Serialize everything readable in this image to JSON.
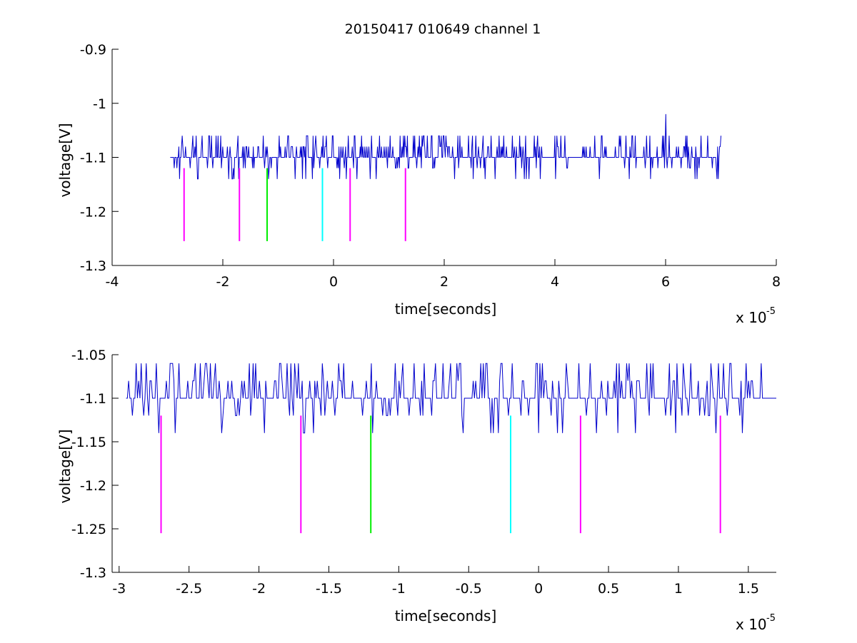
{
  "figure": {
    "title": "20150417 010649 channel 1"
  },
  "chart_data": [
    {
      "type": "line",
      "xlabel": "time[seconds]",
      "ylabel": "voltage[V]",
      "x_multiplier_label": "x 10",
      "x_multiplier_exponent": "-5",
      "xlim": [
        -4,
        8
      ],
      "ylim": [
        -1.3,
        -0.9
      ],
      "xticks": [
        -4,
        -2,
        0,
        2,
        4,
        6,
        8
      ],
      "xtick_labels": [
        "-4",
        "-2",
        "0",
        "2",
        "4",
        "6",
        "8"
      ],
      "yticks": [
        -1.3,
        -1.2,
        -1.1,
        -1,
        -0.9
      ],
      "ytick_labels": [
        "-1.3",
        "-1.2",
        "-1.1",
        "-1",
        "-0.9"
      ],
      "grid": false,
      "series": [
        {
          "color": "#0000cc",
          "x_range": [
            -2.95,
            7.0
          ],
          "baseline": -1.1,
          "levels": [
            -1.14,
            -1.12,
            -1.1,
            -1.08,
            -1.06
          ],
          "spike": {
            "x": 6.0,
            "y": -1.02
          }
        }
      ],
      "markers": [
        {
          "x": -2.7,
          "y_top": -1.12,
          "y_bottom": -1.255,
          "color": "#ff00ff"
        },
        {
          "x": -1.7,
          "y_top": -1.12,
          "y_bottom": -1.255,
          "color": "#ff00ff"
        },
        {
          "x": -1.2,
          "y_top": -1.12,
          "y_bottom": -1.255,
          "color": "#00ee00"
        },
        {
          "x": -0.2,
          "y_top": -1.12,
          "y_bottom": -1.255,
          "color": "#00ffff"
        },
        {
          "x": 0.3,
          "y_top": -1.12,
          "y_bottom": -1.255,
          "color": "#ff00ff"
        },
        {
          "x": 1.3,
          "y_top": -1.12,
          "y_bottom": -1.255,
          "color": "#ff00ff"
        }
      ]
    },
    {
      "type": "line",
      "xlabel": "time[seconds]",
      "ylabel": "voltage[V]",
      "x_multiplier_label": "x 10",
      "x_multiplier_exponent": "-5",
      "xlim": [
        -3.05,
        1.7
      ],
      "ylim": [
        -1.3,
        -1.05
      ],
      "xticks": [
        -3,
        -2.5,
        -2,
        -1.5,
        -1,
        -0.5,
        0,
        0.5,
        1,
        1.5
      ],
      "xtick_labels": [
        "-3",
        "-2.5",
        "-2",
        "-1.5",
        "-1",
        "-0.5",
        "0",
        "0.5",
        "1",
        "1.5"
      ],
      "yticks": [
        -1.3,
        -1.25,
        -1.2,
        -1.15,
        -1.1,
        -1.05
      ],
      "ytick_labels": [
        "-1.3",
        "-1.25",
        "-1.2",
        "-1.15",
        "-1.1",
        "-1.05"
      ],
      "grid": false,
      "series": [
        {
          "color": "#0000cc",
          "x_range": [
            -2.95,
            1.7
          ],
          "baseline": -1.1,
          "levels": [
            -1.14,
            -1.12,
            -1.1,
            -1.08,
            -1.06
          ]
        }
      ],
      "markers": [
        {
          "x": -2.7,
          "y_top": -1.12,
          "y_bottom": -1.255,
          "color": "#ff00ff"
        },
        {
          "x": -1.7,
          "y_top": -1.12,
          "y_bottom": -1.255,
          "color": "#ff00ff"
        },
        {
          "x": -1.2,
          "y_top": -1.12,
          "y_bottom": -1.255,
          "color": "#00ee00"
        },
        {
          "x": -0.2,
          "y_top": -1.12,
          "y_bottom": -1.255,
          "color": "#00ffff"
        },
        {
          "x": 0.3,
          "y_top": -1.12,
          "y_bottom": -1.255,
          "color": "#ff00ff"
        },
        {
          "x": 1.3,
          "y_top": -1.12,
          "y_bottom": -1.255,
          "color": "#ff00ff"
        }
      ]
    }
  ]
}
